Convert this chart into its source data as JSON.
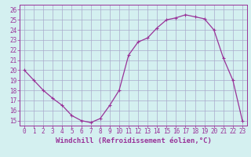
{
  "x": [
    0,
    1,
    2,
    3,
    4,
    5,
    6,
    7,
    8,
    9,
    10,
    11,
    12,
    13,
    14,
    15,
    16,
    17,
    18,
    19,
    20,
    21,
    22,
    23
  ],
  "y": [
    20.0,
    19.0,
    18.0,
    17.2,
    16.5,
    15.5,
    15.0,
    14.8,
    15.2,
    16.5,
    18.0,
    21.5,
    22.8,
    23.2,
    24.2,
    25.0,
    25.2,
    25.5,
    25.3,
    25.1,
    24.0,
    21.2,
    19.0,
    15.0
  ],
  "line_color": "#993399",
  "marker": "+",
  "marker_size": 3,
  "linewidth": 0.9,
  "xlim": [
    -0.5,
    23.5
  ],
  "ylim": [
    14.5,
    26.5
  ],
  "yticks": [
    15,
    16,
    17,
    18,
    19,
    20,
    21,
    22,
    23,
    24,
    25,
    26
  ],
  "xticks": [
    0,
    1,
    2,
    3,
    4,
    5,
    6,
    7,
    8,
    9,
    10,
    11,
    12,
    13,
    14,
    15,
    16,
    17,
    18,
    19,
    20,
    21,
    22,
    23
  ],
  "xlabel": "Windchill (Refroidissement éolien,°C)",
  "background_color": "#d4f0f0",
  "grid_color": "#aaaacc",
  "spine_color": "#993399",
  "tick_label_color": "#993399",
  "xlabel_color": "#993399",
  "xlabel_fontsize": 6.5,
  "tick_fontsize": 5.5
}
